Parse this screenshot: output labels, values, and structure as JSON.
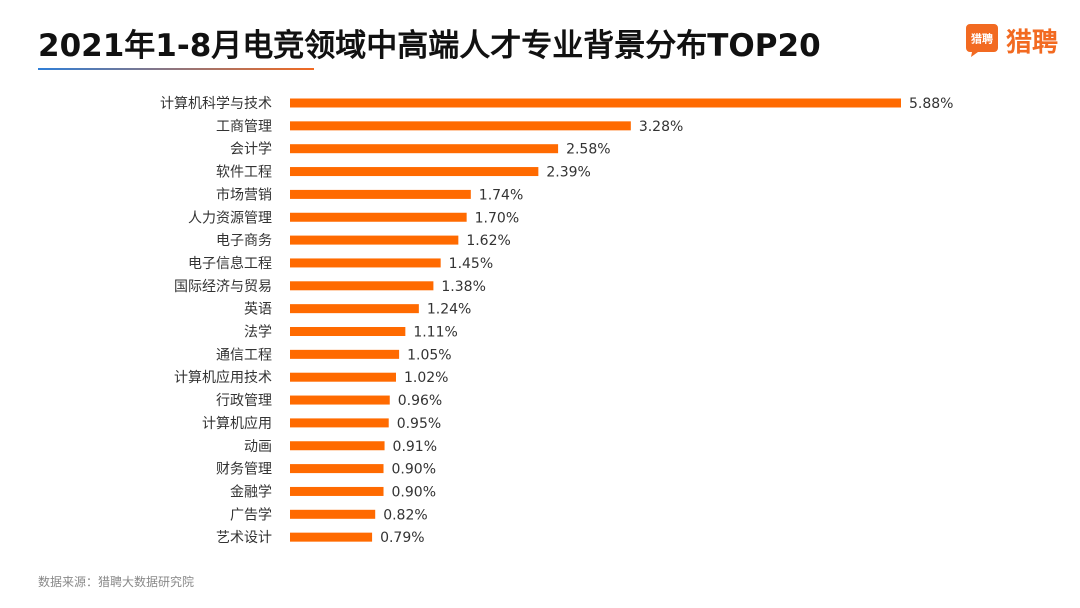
{
  "header": {
    "title": "2021年1-8月电竞领域中高端人才专业背景分布TOP20",
    "underline_colors": [
      "#2f7fd8",
      "#f26a21"
    ]
  },
  "brand": {
    "logo_text": "猎聘",
    "name": "猎聘",
    "color": "#f26a21"
  },
  "footer": {
    "source": "数据来源：猎聘大数据研究院"
  },
  "chart_data": {
    "type": "bar",
    "orientation": "horizontal",
    "title": "2021年1-8月电竞领域中高端人才专业背景分布TOP20",
    "xlabel": "",
    "ylabel": "",
    "unit": "%",
    "bar_color": "#ff6a00",
    "grid": false,
    "legend": "none",
    "xlim": [
      0,
      6.0
    ],
    "categories": [
      "计算机科学与技术",
      "工商管理",
      "会计学",
      "软件工程",
      "市场营销",
      "人力资源管理",
      "电子商务",
      "电子信息工程",
      "国际经济与贸易",
      "英语",
      "法学",
      "通信工程",
      "计算机应用技术",
      "行政管理",
      "计算机应用",
      "动画",
      "财务管理",
      "金融学",
      "广告学",
      "艺术设计"
    ],
    "values": [
      5.88,
      3.28,
      2.58,
      2.39,
      1.74,
      1.7,
      1.62,
      1.45,
      1.38,
      1.24,
      1.11,
      1.05,
      1.02,
      0.96,
      0.95,
      0.91,
      0.9,
      0.9,
      0.82,
      0.79
    ],
    "value_labels": [
      "5.88%",
      "3.28%",
      "2.58%",
      "2.39%",
      "1.74%",
      "1.70%",
      "1.62%",
      "1.45%",
      "1.38%",
      "1.24%",
      "1.11%",
      "1.05%",
      "1.02%",
      "0.96%",
      "0.95%",
      "0.91%",
      "0.90%",
      "0.90%",
      "0.82%",
      "0.79%"
    ]
  }
}
